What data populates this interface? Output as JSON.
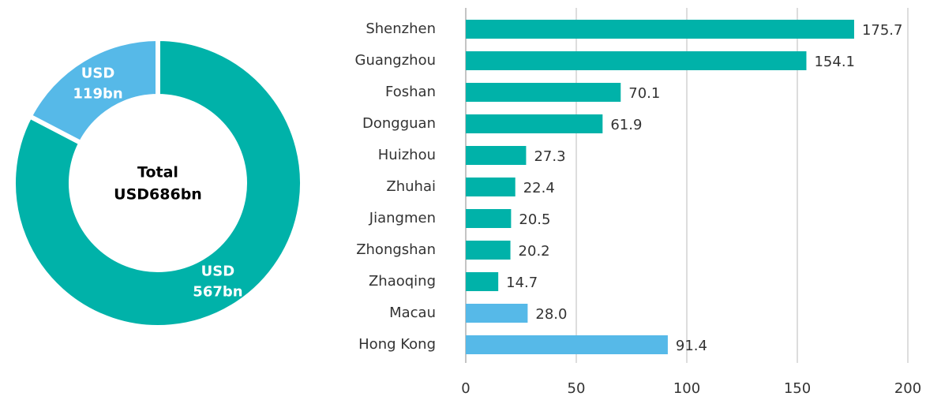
{
  "chart_data": [
    {
      "type": "donut",
      "values": [
        567,
        119
      ],
      "value_labels": [
        "USD 567bn",
        "USD 119bn"
      ],
      "colors": [
        "#00b2a9",
        "#56b9e8"
      ],
      "center_text": [
        "Total",
        "USD686bn"
      ]
    },
    {
      "type": "hbar",
      "categories": [
        "Shenzhen",
        "Guangzhou",
        "Foshan",
        "Dongguan",
        "Huizhou",
        "Zhuhai",
        "Jiangmen",
        "Zhongshan",
        "Zhaoqing",
        "Macau",
        "Hong Kong"
      ],
      "values": [
        175.7,
        154.1,
        70.1,
        61.9,
        27.3,
        22.4,
        20.5,
        20.2,
        14.7,
        28.0,
        91.4
      ],
      "value_labels": [
        "175.7",
        "154.1",
        "70.1",
        "61.9",
        "27.3",
        "22.4",
        "20.5",
        "20.2",
        "14.7",
        "28.0",
        "91.4"
      ],
      "colors": [
        "#00b2a9",
        "#00b2a9",
        "#00b2a9",
        "#00b2a9",
        "#00b2a9",
        "#00b2a9",
        "#00b2a9",
        "#00b2a9",
        "#00b2a9",
        "#56b9e8",
        "#56b9e8"
      ],
      "xlim": [
        0,
        200
      ],
      "xticks": [
        0,
        50,
        100,
        150,
        200
      ],
      "grid": true
    }
  ]
}
